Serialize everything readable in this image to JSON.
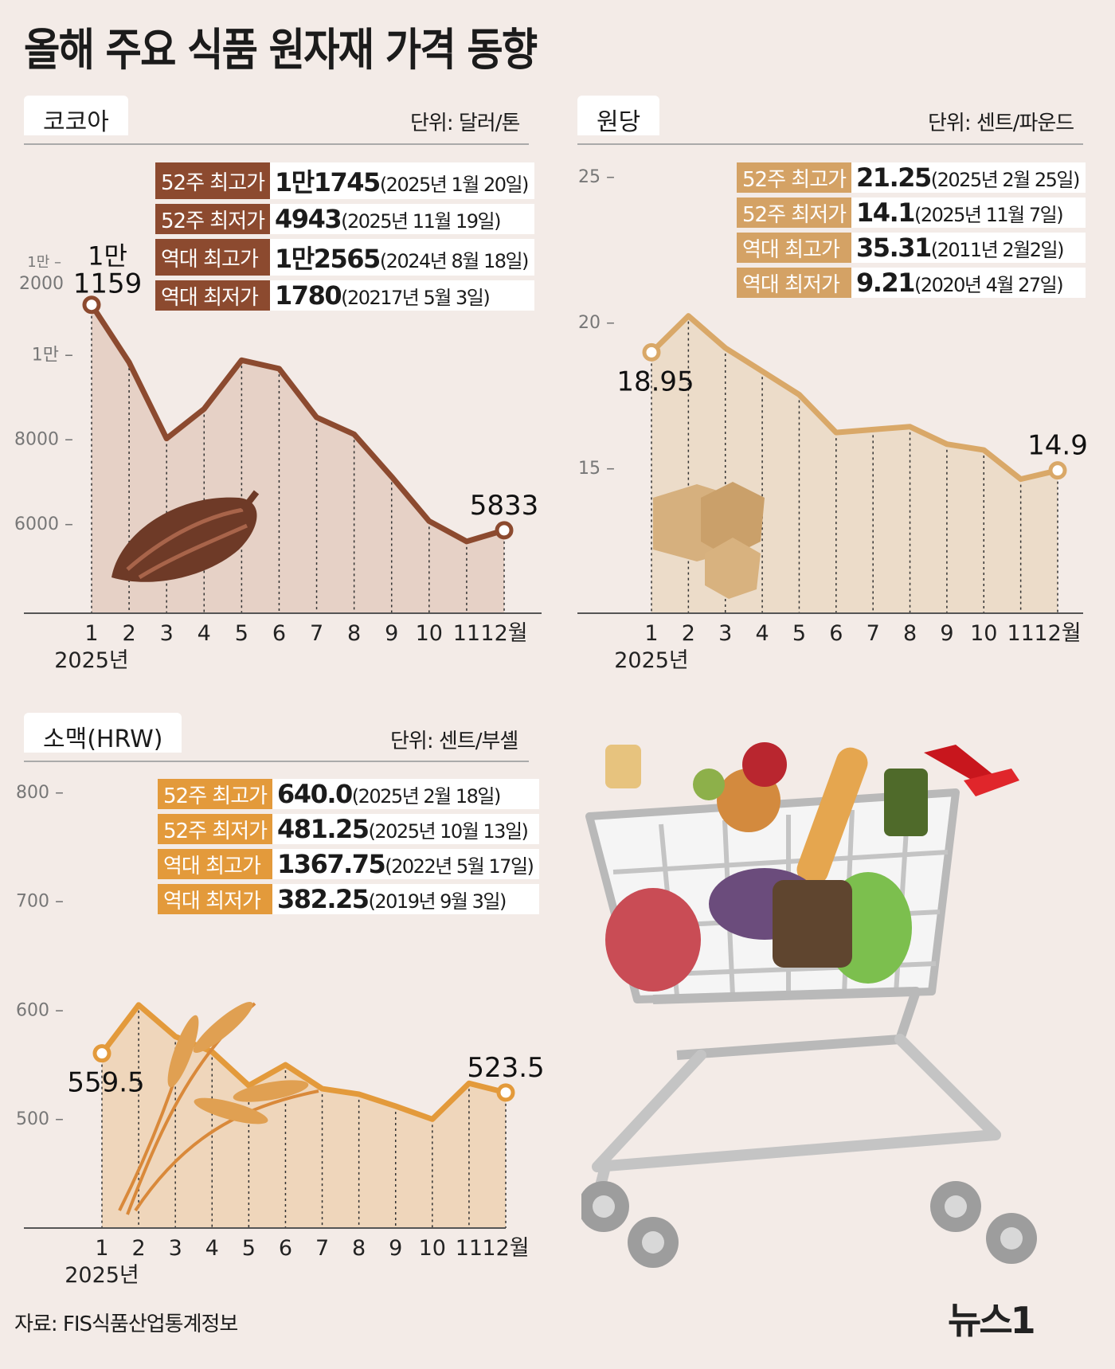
{
  "title": "올해 주요 식품 원자재 가격 동향",
  "source": "자료: FIS식품산업통계정보",
  "brand": "뉴스1",
  "brand_mark": "1",
  "year_label": "2025년",
  "chart_data": [
    {
      "id": "cocoa",
      "type": "area",
      "title": "코코아",
      "unit": "단위: 달러/톤",
      "color": "#8c4a2f",
      "fill": "#e6d1c6",
      "label_bg": "#8c4a2f",
      "categories": [
        "1",
        "2",
        "3",
        "4",
        "5",
        "6",
        "7",
        "8",
        "9",
        "10",
        "11",
        "12월"
      ],
      "values": [
        11159,
        9800,
        8000,
        8700,
        9850,
        9650,
        8500,
        8100,
        7100,
        6050,
        5570,
        5833
      ],
      "ylim": [
        4000,
        12000
      ],
      "yticks": [
        {
          "value": 6000,
          "label": "6000"
        },
        {
          "value": 8000,
          "label": "8000"
        },
        {
          "value": 10000,
          "label": "1만"
        },
        {
          "value": 12000,
          "label": "1만 2000"
        }
      ],
      "start_label": "1만 1159",
      "end_label": "5833",
      "stats": [
        {
          "label": "52주 최고가",
          "value": "1만1745",
          "date": "(2025년 1월 20일)"
        },
        {
          "label": "52주 최저가",
          "value": "4943",
          "date": "(2025년 11월 19일)"
        },
        {
          "label": "역대 최고가",
          "value": "1만2565",
          "date": "(2024년 8월 18일)"
        },
        {
          "label": "역대 최저가",
          "value": "1780",
          "date": "(20217년 5월 3일)"
        }
      ]
    },
    {
      "id": "sugar",
      "type": "area",
      "title": "원당",
      "unit": "단위: 센트/파운드",
      "color": "#d9a868",
      "fill": "#ecdcc9",
      "label_bg": "#d4a265",
      "categories": [
        "1",
        "2",
        "3",
        "4",
        "5",
        "6",
        "7",
        "8",
        "9",
        "10",
        "11",
        "12월"
      ],
      "values": [
        18.95,
        20.2,
        19.1,
        18.3,
        17.5,
        16.2,
        16.3,
        16.4,
        15.8,
        15.6,
        14.6,
        14.9
      ],
      "ylim": [
        10,
        25
      ],
      "yticks": [
        {
          "value": 15,
          "label": "15"
        },
        {
          "value": 20,
          "label": "20"
        },
        {
          "value": 25,
          "label": "25"
        }
      ],
      "start_label": "18.95",
      "end_label": "14.9",
      "stats": [
        {
          "label": "52주 최고가",
          "value": "21.25",
          "date": "(2025년 2월 25일)"
        },
        {
          "label": "52주 최저가",
          "value": "14.1",
          "date": "(2025년 11월 7일)"
        },
        {
          "label": "역대 최고가",
          "value": "35.31",
          "date": "(2011년 2월2일)"
        },
        {
          "label": "역대 최저가",
          "value": "9.21",
          "date": "(2020년 4월 27일)"
        }
      ]
    },
    {
      "id": "wheat",
      "type": "area",
      "title": "소맥(HRW)",
      "unit": "단위: 센트/부셸",
      "color": "#e39a3b",
      "fill": "#efd6bb",
      "label_bg": "#e39a3b",
      "categories": [
        "1",
        "2",
        "3",
        "4",
        "5",
        "6",
        "7",
        "8",
        "9",
        "10",
        "11",
        "12월"
      ],
      "values": [
        559.5,
        604,
        575,
        561,
        530,
        549,
        527,
        522,
        511,
        499,
        532,
        523.5
      ],
      "ylim": [
        400,
        800
      ],
      "yticks": [
        {
          "value": 500,
          "label": "500"
        },
        {
          "value": 600,
          "label": "600"
        },
        {
          "value": 700,
          "label": "700"
        },
        {
          "value": 800,
          "label": "800"
        }
      ],
      "start_label": "559.5",
      "end_label": "523.5",
      "stats": [
        {
          "label": "52주 최고가",
          "value": "640.0",
          "date": "(2025년 2월 18일)"
        },
        {
          "label": "52주 최저가",
          "value": "481.25",
          "date": "(2025년 10월 13일)"
        },
        {
          "label": "역대 최고가",
          "value": "1367.75",
          "date": "(2022년 5월 17일)"
        },
        {
          "label": "역대 최저가",
          "value": "382.25",
          "date": "(2019년 9월 3일)"
        }
      ]
    }
  ]
}
